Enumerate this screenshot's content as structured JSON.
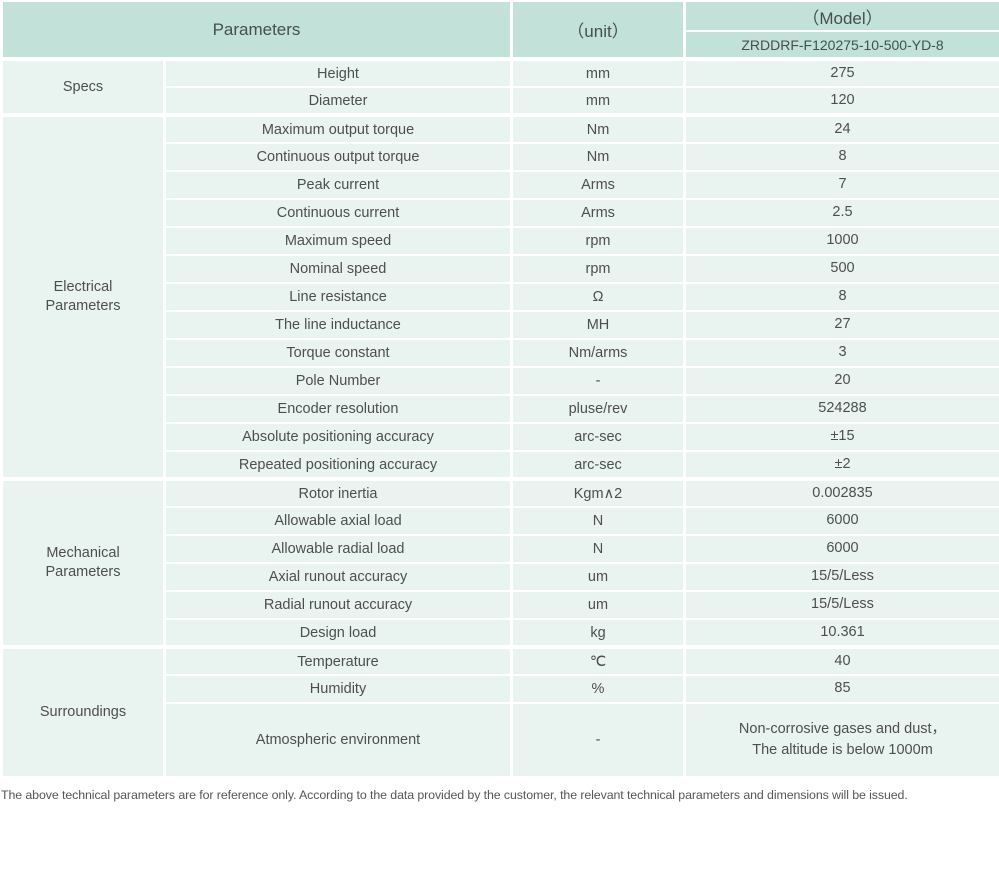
{
  "colors": {
    "header_bg": "#c2e1d8",
    "row_bg": "#e9f4f1",
    "text": "#4e4e4e",
    "grid_line": "#ffffff"
  },
  "table": {
    "header": {
      "parameters_label": "Parameters",
      "unit_label": "（unit）",
      "model_label": "（Model）",
      "model_value": "ZRDDRF-F120275-10-500-YD-8"
    },
    "sections": [
      {
        "category": "Specs",
        "rows": [
          {
            "name": "Height",
            "unit": "mm",
            "value": "275"
          },
          {
            "name": "Diameter",
            "unit": "mm",
            "value": "120"
          }
        ]
      },
      {
        "category": "Electrical\nParameters",
        "rows": [
          {
            "name": "Maximum output torque",
            "unit": "Nm",
            "value": "24"
          },
          {
            "name": "Continuous output torque",
            "unit": "Nm",
            "value": "8"
          },
          {
            "name": "Peak current",
            "unit": "Arms",
            "value": "7"
          },
          {
            "name": "Continuous current",
            "unit": "Arms",
            "value": "2.5"
          },
          {
            "name": "Maximum speed",
            "unit": "rpm",
            "value": "1000"
          },
          {
            "name": "Nominal speed",
            "unit": "rpm",
            "value": "500"
          },
          {
            "name": "Line resistance",
            "unit": "Ω",
            "value": "8"
          },
          {
            "name": "The line inductance",
            "unit": "MH",
            "value": "27"
          },
          {
            "name": "Torque constant",
            "unit": "Nm/arms",
            "value": "3"
          },
          {
            "name": "Pole Number",
            "unit": "-",
            "value": "20"
          },
          {
            "name": "Encoder resolution",
            "unit": "pluse/rev",
            "value": "524288"
          },
          {
            "name": "Absolute positioning accuracy",
            "unit": "arc-sec",
            "value": "±15"
          },
          {
            "name": "Repeated positioning accuracy",
            "unit": "arc-sec",
            "value": "±2"
          }
        ]
      },
      {
        "category": "Mechanical\nParameters",
        "rows": [
          {
            "name": "Rotor inertia",
            "unit": "Kgm∧2",
            "value": "0.002835"
          },
          {
            "name": "Allowable axial load",
            "unit": "N",
            "value": "6000"
          },
          {
            "name": "Allowable radial load",
            "unit": "N",
            "value": "6000"
          },
          {
            "name": "Axial runout accuracy",
            "unit": "um",
            "value": "15/5/Less"
          },
          {
            "name": "Radial runout accuracy",
            "unit": "um",
            "value": "15/5/Less"
          },
          {
            "name": "Design load",
            "unit": "kg",
            "value": "10.361"
          }
        ]
      },
      {
        "category": "Surroundings",
        "rows": [
          {
            "name": "Temperature",
            "unit": "℃",
            "value": "40"
          },
          {
            "name": "Humidity",
            "unit": "%",
            "value": "85"
          },
          {
            "name": "Atmospheric environment",
            "unit": "-",
            "value": "Non-corrosive gases and dust，\nThe altitude is below 1000m"
          }
        ]
      }
    ]
  },
  "footer_note": "The above technical parameters are for reference only. According to the data provided by the customer, the relevant technical parameters and dimensions will be issued."
}
